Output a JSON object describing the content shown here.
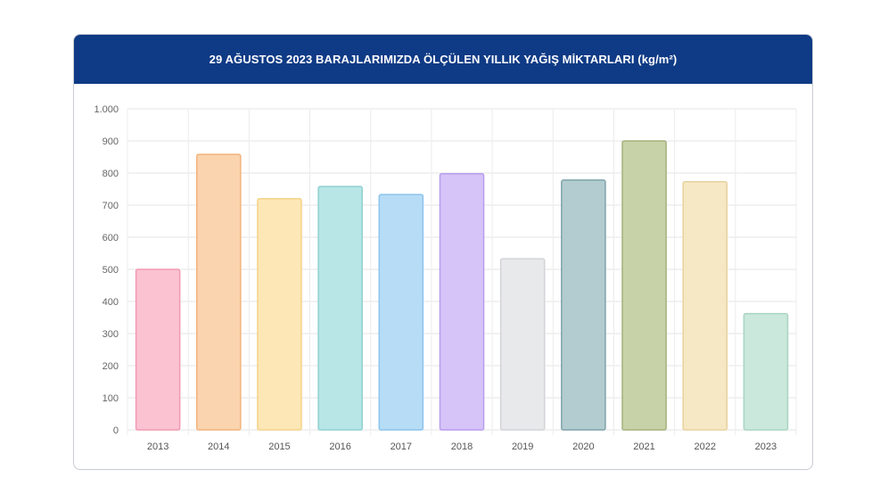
{
  "header": {
    "title": "29 AĞUSTOS 2023 BARAJLARIMIZDA ÖLÇÜLEN YILLIK YAĞIŞ MİKTARLARI (kg/m²)"
  },
  "chart_data": {
    "type": "bar",
    "title": "29 AĞUSTOS 2023 BARAJLARIMIZDA ÖLÇÜLEN YILLIK YAĞIŞ MİKTARLARI (kg/m²)",
    "xlabel": "",
    "ylabel": "",
    "categories": [
      "2013",
      "2014",
      "2015",
      "2016",
      "2017",
      "2018",
      "2019",
      "2020",
      "2021",
      "2022",
      "2023"
    ],
    "values": [
      500,
      858,
      720,
      758,
      733,
      798,
      533,
      778,
      900,
      773,
      362
    ],
    "ylim": [
      0,
      1000
    ],
    "yticks": [
      0,
      100,
      200,
      300,
      400,
      500,
      600,
      700,
      800,
      900,
      1000
    ],
    "ytick_labels": [
      "0",
      "100",
      "200",
      "300",
      "400",
      "500",
      "600",
      "700",
      "800",
      "900",
      "1.000"
    ],
    "grid": true,
    "legend": "none",
    "colors": [
      {
        "fill": "#fbc2d2",
        "stroke": "#f29ab2"
      },
      {
        "fill": "#fad4ae",
        "stroke": "#f2b37c"
      },
      {
        "fill": "#fde7b6",
        "stroke": "#f3d38a"
      },
      {
        "fill": "#b8e6e6",
        "stroke": "#8fd0d0"
      },
      {
        "fill": "#b6dcf6",
        "stroke": "#8cc4ec"
      },
      {
        "fill": "#d6c3f7",
        "stroke": "#b89ded"
      },
      {
        "fill": "#e8e9eb",
        "stroke": "#d2d4d8"
      },
      {
        "fill": "#b3cccf",
        "stroke": "#7ea4aa"
      },
      {
        "fill": "#c8d2a8",
        "stroke": "#a4b27c"
      },
      {
        "fill": "#f6e8c4",
        "stroke": "#e7d29e"
      },
      {
        "fill": "#cbe8dc",
        "stroke": "#a8d4c2"
      }
    ]
  }
}
